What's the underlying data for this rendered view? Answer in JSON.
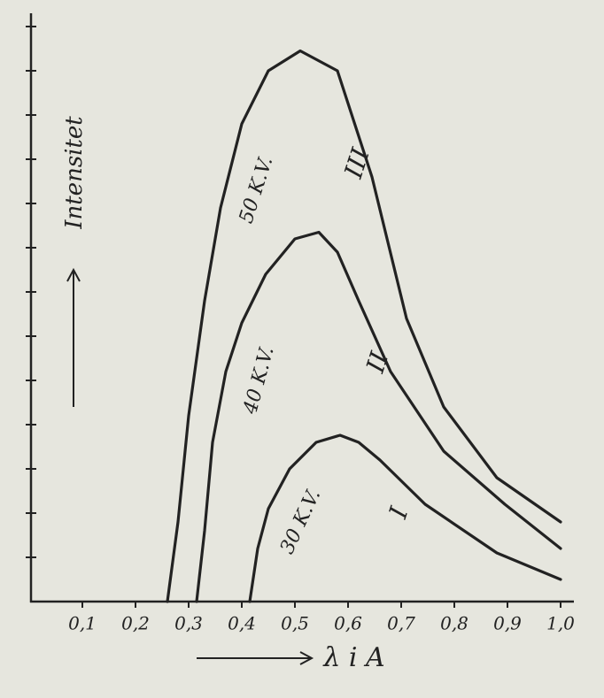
{
  "chart_data": {
    "type": "line",
    "ylabel": "Intensitet",
    "xlabel": "λ i A",
    "xlim": [
      0,
      1.03
    ],
    "ylim": [
      0,
      13.3
    ],
    "xticks": [
      {
        "value": 0.1,
        "label": "0,1"
      },
      {
        "value": 0.2,
        "label": "0,2"
      },
      {
        "value": 0.3,
        "label": "0,3"
      },
      {
        "value": 0.4,
        "label": "0,4"
      },
      {
        "value": 0.5,
        "label": "0,5"
      },
      {
        "value": 0.6,
        "label": "0,6"
      },
      {
        "value": 0.7,
        "label": "0,7"
      },
      {
        "value": 0.8,
        "label": "0,8"
      },
      {
        "value": 0.9,
        "label": "0,9"
      },
      {
        "value": 1.0,
        "label": "1,0"
      }
    ],
    "yticks": [
      1,
      2,
      3,
      4,
      5,
      6,
      7,
      8,
      9,
      10,
      11,
      12,
      13
    ],
    "series": [
      {
        "name": "50 K.V.",
        "numeral": "III",
        "color": "#222222",
        "x": [
          0.26,
          0.28,
          0.3,
          0.33,
          0.36,
          0.4,
          0.45,
          0.51,
          0.58,
          0.645,
          0.71,
          0.78,
          0.88,
          1.0
        ],
        "values": [
          0,
          1.8,
          4.2,
          6.8,
          8.9,
          10.8,
          12.0,
          12.45,
          12.0,
          9.6,
          6.4,
          4.4,
          2.8,
          1.8
        ]
      },
      {
        "name": "40 K.V.",
        "numeral": "II",
        "color": "#222222",
        "x": [
          0.315,
          0.33,
          0.345,
          0.37,
          0.4,
          0.445,
          0.5,
          0.545,
          0.58,
          0.62,
          0.68,
          0.78,
          0.895,
          1.0
        ],
        "values": [
          0,
          1.6,
          3.6,
          5.2,
          6.3,
          7.4,
          8.2,
          8.35,
          7.9,
          6.8,
          5.2,
          3.4,
          2.2,
          1.2
        ]
      },
      {
        "name": "30 K.V.",
        "numeral": "I",
        "color": "#222222",
        "x": [
          0.415,
          0.43,
          0.45,
          0.49,
          0.54,
          0.585,
          0.62,
          0.66,
          0.745,
          0.88,
          1.0
        ],
        "values": [
          0,
          1.2,
          2.1,
          3.0,
          3.6,
          3.76,
          3.6,
          3.2,
          2.2,
          1.1,
          0.5
        ]
      }
    ]
  }
}
